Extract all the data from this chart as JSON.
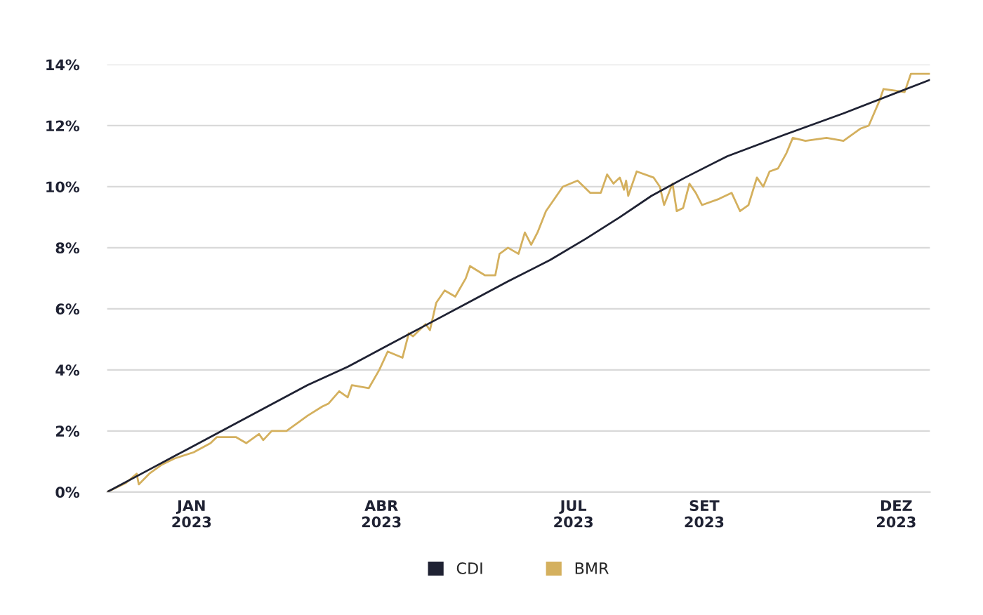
{
  "chart_data": {
    "type": "line",
    "xlim": [
      "2022-11-22",
      "2023-12-17"
    ],
    "ylim": [
      0,
      14
    ],
    "xticks": [
      {
        "value": "2023-01-01",
        "label": "JAN\n2023"
      },
      {
        "value": "2023-04-01",
        "label": "ABR\n2023"
      },
      {
        "value": "2023-07-01",
        "label": "JUL\n2023"
      },
      {
        "value": "2023-09-01",
        "label": "SET\n2023"
      },
      {
        "value": "2023-12-01",
        "label": "DEZ\n2023"
      }
    ],
    "yticks": [
      {
        "value": 0,
        "label": "0%"
      },
      {
        "value": 2,
        "label": "2%"
      },
      {
        "value": 4,
        "label": "4%"
      },
      {
        "value": 6,
        "label": "6%"
      },
      {
        "value": 8,
        "label": "8%"
      },
      {
        "value": 10,
        "label": "10%"
      },
      {
        "value": 12,
        "label": "12%"
      },
      {
        "value": 14,
        "label": "14%"
      }
    ],
    "grid": "y",
    "legend": "bottom",
    "marker": "none",
    "line_style": "solid",
    "series": [
      {
        "name": "CDI",
        "color": "#1f2233",
        "x": [
          "2022-11-22",
          "2022-12-11",
          "2022-12-30",
          "2023-01-18",
          "2023-02-06",
          "2023-02-25",
          "2023-03-16",
          "2023-04-04",
          "2023-04-23",
          "2023-05-12",
          "2023-05-31",
          "2023-06-20",
          "2023-07-07",
          "2023-07-23",
          "2023-08-07",
          "2023-08-23",
          "2023-09-12",
          "2023-10-09",
          "2023-11-06",
          "2023-12-17"
        ],
        "values": [
          0,
          0.7,
          1.4,
          2.1,
          2.8,
          3.5,
          4.1,
          4.8,
          5.5,
          6.2,
          6.9,
          7.6,
          8.3,
          9.0,
          9.7,
          10.3,
          11.0,
          11.7,
          12.4,
          13.5
        ]
      },
      {
        "name": "BMR",
        "color": "#d4b05e",
        "x": [
          "2022-11-22",
          "2022-12-01",
          "2022-12-06",
          "2022-12-07",
          "2022-12-12",
          "2022-12-18",
          "2022-12-24",
          "2023-01-02",
          "2023-01-10",
          "2023-01-13",
          "2023-01-22",
          "2023-01-27",
          "2023-02-02",
          "2023-02-04",
          "2023-02-08",
          "2023-02-15",
          "2023-02-21",
          "2023-02-25",
          "2023-03-04",
          "2023-03-07",
          "2023-03-12",
          "2023-03-16",
          "2023-03-18",
          "2023-03-26",
          "2023-03-31",
          "2023-04-04",
          "2023-04-11",
          "2023-04-14",
          "2023-04-16",
          "2023-04-22",
          "2023-04-24",
          "2023-04-27",
          "2023-05-01",
          "2023-05-06",
          "2023-05-11",
          "2023-05-13",
          "2023-05-20",
          "2023-05-25",
          "2023-05-27",
          "2023-05-31",
          "2023-06-05",
          "2023-06-08",
          "2023-06-11",
          "2023-06-14",
          "2023-06-18",
          "2023-06-21",
          "2023-06-26",
          "2023-07-03",
          "2023-07-09",
          "2023-07-14",
          "2023-07-17",
          "2023-07-20",
          "2023-07-23",
          "2023-07-25",
          "2023-07-26",
          "2023-07-27",
          "2023-07-31",
          "2023-08-08",
          "2023-08-11",
          "2023-08-13",
          "2023-08-17",
          "2023-08-19",
          "2023-08-22",
          "2023-08-25",
          "2023-08-28",
          "2023-08-31",
          "2023-09-08",
          "2023-09-14",
          "2023-09-18",
          "2023-09-22",
          "2023-09-26",
          "2023-09-29",
          "2023-10-02",
          "2023-10-06",
          "2023-10-10",
          "2023-10-13",
          "2023-10-19",
          "2023-10-29",
          "2023-11-06",
          "2023-11-14",
          "2023-11-18",
          "2023-11-23",
          "2023-11-25",
          "2023-12-05",
          "2023-12-08",
          "2023-12-17"
        ],
        "values": [
          0,
          0.3,
          0.6,
          0.25,
          0.6,
          0.9,
          1.1,
          1.3,
          1.6,
          1.8,
          1.8,
          1.6,
          1.9,
          1.7,
          2.0,
          2.0,
          2.3,
          2.5,
          2.8,
          2.9,
          3.3,
          3.1,
          3.5,
          3.4,
          4.0,
          4.6,
          4.4,
          5.2,
          5.1,
          5.5,
          5.3,
          6.2,
          6.6,
          6.4,
          7.0,
          7.4,
          7.1,
          7.1,
          7.8,
          8.0,
          7.8,
          8.5,
          8.1,
          8.5,
          9.2,
          9.5,
          10.0,
          10.2,
          9.8,
          9.8,
          10.4,
          10.1,
          10.3,
          9.9,
          10.2,
          9.7,
          10.5,
          10.3,
          10.0,
          9.4,
          10.1,
          9.2,
          9.3,
          10.1,
          9.8,
          9.4,
          9.6,
          9.8,
          9.2,
          9.4,
          10.3,
          10.0,
          10.5,
          10.6,
          11.1,
          11.6,
          11.5,
          11.6,
          11.5,
          11.9,
          12.0,
          12.8,
          13.2,
          13.1,
          13.7,
          13.7
        ]
      }
    ]
  }
}
